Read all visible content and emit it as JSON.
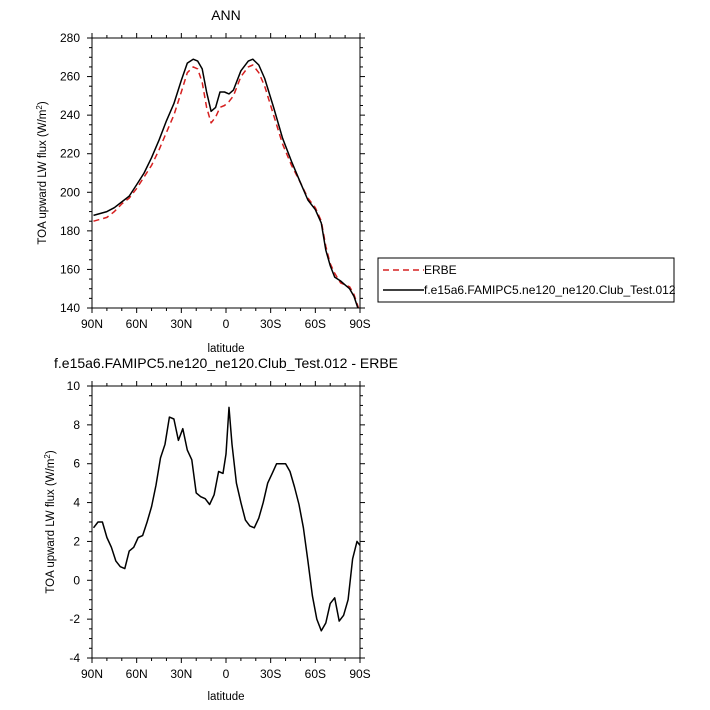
{
  "chart_data": [
    {
      "type": "line",
      "title": "ANN",
      "xlabel": "latitude",
      "ylabel": "TOA upward LW flux (W/m",
      "ylabel_sup": "2",
      "ylabel_close": ")",
      "xlim": [
        90,
        -90
      ],
      "ylim": [
        140,
        280
      ],
      "xticks": [
        90,
        60,
        30,
        0,
        -30,
        -60,
        -90
      ],
      "xtick_labels": [
        "90N",
        "60N",
        "30N",
        "0",
        "30S",
        "60S",
        "90S"
      ],
      "yticks": [
        140,
        160,
        180,
        200,
        220,
        240,
        260,
        280
      ],
      "ytick_labels": [
        "140",
        "160",
        "180",
        "200",
        "220",
        "240",
        "260",
        "280"
      ],
      "grid": false,
      "legend_position": "right",
      "series": [
        {
          "name": "ERBE",
          "color": "#d62020",
          "dash": true,
          "points": [
            [
              89,
              185
            ],
            [
              80,
              187
            ],
            [
              75,
              190
            ],
            [
              70,
              194
            ],
            [
              65,
              197
            ],
            [
              60,
              202
            ],
            [
              55,
              208
            ],
            [
              50,
              214
            ],
            [
              45,
              222
            ],
            [
              40,
              231
            ],
            [
              35,
              240
            ],
            [
              30,
              252
            ],
            [
              26,
              262
            ],
            [
              22,
              265
            ],
            [
              19,
              264
            ],
            [
              16,
              257
            ],
            [
              13,
              244
            ],
            [
              10,
              236
            ],
            [
              7,
              239
            ],
            [
              4,
              244
            ],
            [
              1,
              245
            ],
            [
              -2,
              247
            ],
            [
              -5,
              250
            ],
            [
              -10,
              260
            ],
            [
              -15,
              265
            ],
            [
              -18,
              266
            ],
            [
              -22,
              262
            ],
            [
              -26,
              255
            ],
            [
              -32,
              240
            ],
            [
              -38,
              225
            ],
            [
              -44,
              214
            ],
            [
              -50,
              205
            ],
            [
              -55,
              197
            ],
            [
              -60,
              192
            ],
            [
              -64,
              185
            ],
            [
              -67,
              172
            ],
            [
              -70,
              163
            ],
            [
              -73,
              158
            ],
            [
              -77,
              153
            ],
            [
              -80,
              152
            ],
            [
              -83,
              151
            ],
            [
              -86,
              147
            ],
            [
              -89,
              140
            ]
          ]
        },
        {
          "name": "f.e15a6.FAMIPC5.ne120_ne120.Club_Test.012",
          "color": "#000000",
          "dash": false,
          "points": [
            [
              89,
              188
            ],
            [
              80,
              190
            ],
            [
              75,
              192
            ],
            [
              70,
              195
            ],
            [
              65,
              198
            ],
            [
              60,
              204
            ],
            [
              55,
              210
            ],
            [
              50,
              218
            ],
            [
              45,
              227
            ],
            [
              40,
              237
            ],
            [
              35,
              246
            ],
            [
              30,
              258
            ],
            [
              26,
              267
            ],
            [
              22,
              269
            ],
            [
              19,
              268
            ],
            [
              16,
              264
            ],
            [
              13,
              252
            ],
            [
              10,
              242
            ],
            [
              7,
              244
            ],
            [
              4,
              252
            ],
            [
              1,
              252
            ],
            [
              -2,
              251
            ],
            [
              -5,
              253
            ],
            [
              -10,
              263
            ],
            [
              -15,
              268
            ],
            [
              -18,
              269
            ],
            [
              -22,
              266
            ],
            [
              -26,
              259
            ],
            [
              -32,
              244
            ],
            [
              -38,
              228
            ],
            [
              -44,
              216
            ],
            [
              -50,
              205
            ],
            [
              -55,
              196
            ],
            [
              -60,
              191
            ],
            [
              -64,
              184
            ],
            [
              -67,
              170
            ],
            [
              -70,
              162
            ],
            [
              -73,
              156
            ],
            [
              -77,
              154
            ],
            [
              -80,
              152
            ],
            [
              -83,
              150
            ],
            [
              -86,
              146
            ],
            [
              -89,
              139
            ]
          ]
        }
      ]
    },
    {
      "type": "line",
      "title": "f.e15a6.FAMIPC5.ne120_ne120.Club_Test.012 - ERBE",
      "xlabel": "latitude",
      "ylabel": "TOA upward LW flux (W/m",
      "ylabel_sup": "2",
      "ylabel_close": ")",
      "xlim": [
        90,
        -90
      ],
      "ylim": [
        -4,
        10
      ],
      "xticks": [
        90,
        60,
        30,
        0,
        -30,
        -60,
        -90
      ],
      "xtick_labels": [
        "90N",
        "60N",
        "30N",
        "0",
        "30S",
        "60S",
        "90S"
      ],
      "yticks": [
        -4,
        -2,
        0,
        2,
        4,
        6,
        8,
        10
      ],
      "ytick_labels": [
        "-4",
        "-2",
        "0",
        "2",
        "4",
        "6",
        "8",
        "10"
      ],
      "grid": false,
      "series": [
        {
          "color": "#000000",
          "dash": false,
          "points": [
            [
              89,
              2.7
            ],
            [
              86,
              3.0
            ],
            [
              83,
              3.0
            ],
            [
              80,
              2.2
            ],
            [
              77,
              1.7
            ],
            [
              74,
              1.0
            ],
            [
              71,
              0.7
            ],
            [
              68,
              0.6
            ],
            [
              65,
              1.5
            ],
            [
              62,
              1.7
            ],
            [
              59,
              2.2
            ],
            [
              56,
              2.3
            ],
            [
              53,
              3.0
            ],
            [
              50,
              3.8
            ],
            [
              47,
              4.9
            ],
            [
              44,
              6.3
            ],
            [
              41,
              7.0
            ],
            [
              38,
              8.4
            ],
            [
              35,
              8.3
            ],
            [
              32,
              7.2
            ],
            [
              29,
              7.8
            ],
            [
              26,
              6.7
            ],
            [
              23,
              6.2
            ],
            [
              20,
              4.5
            ],
            [
              17,
              4.3
            ],
            [
              14,
              4.2
            ],
            [
              11,
              3.9
            ],
            [
              8,
              4.4
            ],
            [
              5,
              5.6
            ],
            [
              2,
              5.5
            ],
            [
              0,
              6.5
            ],
            [
              -2,
              8.9
            ],
            [
              -4,
              7.0
            ],
            [
              -7,
              5.0
            ],
            [
              -10,
              4.0
            ],
            [
              -13,
              3.1
            ],
            [
              -16,
              2.8
            ],
            [
              -19,
              2.7
            ],
            [
              -22,
              3.2
            ],
            [
              -25,
              4.0
            ],
            [
              -28,
              5.0
            ],
            [
              -31,
              5.5
            ],
            [
              -34,
              6.0
            ],
            [
              -40,
              6.0
            ],
            [
              -43,
              5.6
            ],
            [
              -46,
              4.8
            ],
            [
              -49,
              3.9
            ],
            [
              -52,
              2.7
            ],
            [
              -55,
              1.0
            ],
            [
              -58,
              -0.8
            ],
            [
              -61,
              -2.0
            ],
            [
              -64,
              -2.6
            ],
            [
              -67,
              -2.2
            ],
            [
              -70,
              -1.2
            ],
            [
              -73,
              -0.9
            ],
            [
              -76,
              -2.1
            ],
            [
              -79,
              -1.8
            ],
            [
              -82,
              -1.0
            ],
            [
              -85,
              1.1
            ],
            [
              -88,
              2.0
            ],
            [
              -91,
              1.7
            ],
            [
              -94,
              0.0
            ],
            [
              -97,
              -0.9
            ]
          ]
        }
      ]
    }
  ]
}
